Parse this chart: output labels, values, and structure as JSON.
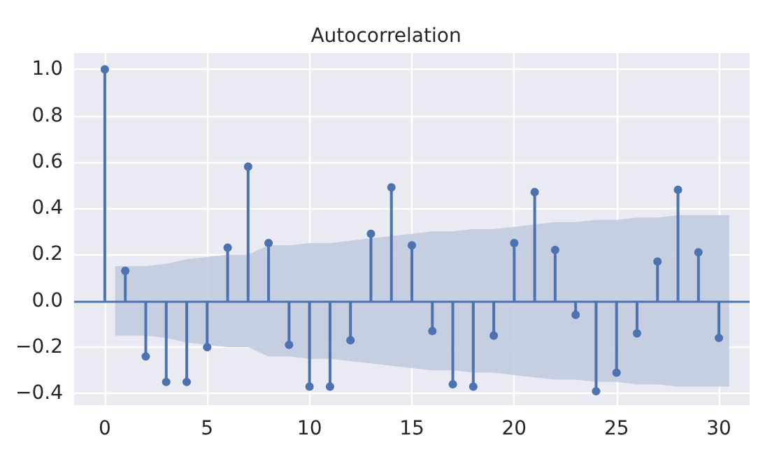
{
  "chart_data": {
    "type": "lollipop",
    "title": "Autocorrelation",
    "x": [
      0,
      1,
      2,
      3,
      4,
      5,
      6,
      7,
      8,
      9,
      10,
      11,
      12,
      13,
      14,
      15,
      16,
      17,
      18,
      19,
      20,
      21,
      22,
      23,
      24,
      25,
      26,
      27,
      28,
      29,
      30
    ],
    "series": [
      {
        "color": "#4c72b0",
        "values": [
          1.0,
          0.13,
          -0.24,
          -0.35,
          -0.35,
          -0.2,
          0.23,
          0.58,
          0.25,
          -0.19,
          -0.37,
          -0.37,
          -0.17,
          0.29,
          0.49,
          0.24,
          -0.13,
          -0.36,
          -0.37,
          -0.15,
          0.25,
          0.47,
          0.22,
          -0.06,
          -0.39,
          -0.31,
          -0.14,
          0.17,
          0.48,
          0.21,
          -0.16
        ]
      },
      {
        "type": "line",
        "color": "#c2cbe0",
        "x": [
          0.5,
          1,
          2,
          3,
          4,
          5,
          6,
          7,
          8,
          9,
          10,
          11,
          12,
          13,
          14,
          15,
          16,
          17,
          18,
          19,
          20,
          21,
          22,
          23,
          24,
          25,
          26,
          27,
          28,
          29,
          30,
          30.5
        ],
        "values": [
          null,
          null,
          null,
          null,
          null,
          null,
          null,
          null,
          null,
          null,
          null,
          null,
          null,
          null,
          null,
          null,
          null,
          null,
          null,
          null,
          null,
          null,
          null,
          null,
          null,
          null,
          null,
          null,
          null,
          null,
          null,
          null
        ],
        "upper": [
          0.15,
          0.15,
          0.15,
          0.16,
          0.18,
          0.19,
          0.2,
          0.2,
          0.24,
          0.24,
          0.25,
          0.25,
          0.26,
          0.27,
          0.28,
          0.29,
          0.3,
          0.3,
          0.31,
          0.31,
          0.32,
          0.33,
          0.34,
          0.34,
          0.35,
          0.35,
          0.36,
          0.36,
          0.37,
          0.37,
          0.37,
          0.37
        ],
        "lower": [
          -0.15,
          -0.15,
          -0.15,
          -0.16,
          -0.18,
          -0.19,
          -0.2,
          -0.2,
          -0.24,
          -0.24,
          -0.25,
          -0.25,
          -0.26,
          -0.27,
          -0.28,
          -0.29,
          -0.3,
          -0.3,
          -0.31,
          -0.31,
          -0.32,
          -0.33,
          -0.34,
          -0.34,
          -0.35,
          -0.35,
          -0.36,
          -0.36,
          -0.37,
          -0.37,
          -0.37,
          -0.37
        ]
      }
    ],
    "ref_lines": [
      {
        "axis": "y",
        "value": 0,
        "color": "#4c72b0"
      }
    ],
    "xlim": [
      -1.5,
      31.5
    ],
    "xticks": [
      0,
      5,
      10,
      15,
      20,
      25,
      30
    ],
    "ylim": [
      -0.45,
      1.07
    ],
    "yticks": [
      {
        "value": -0.4,
        "label": "−0.4"
      },
      {
        "value": -0.2,
        "label": "−0.2"
      },
      {
        "value": 0,
        "label": "0.0"
      },
      {
        "value": 0.2,
        "label": "0.2"
      },
      {
        "value": 0.4,
        "label": "0.4"
      },
      {
        "value": 0.6,
        "label": "0.6"
      },
      {
        "value": 0.8,
        "label": "0.8"
      },
      {
        "value": 1.0,
        "label": "1.0"
      }
    ],
    "grid": true,
    "marker": "circle"
  }
}
